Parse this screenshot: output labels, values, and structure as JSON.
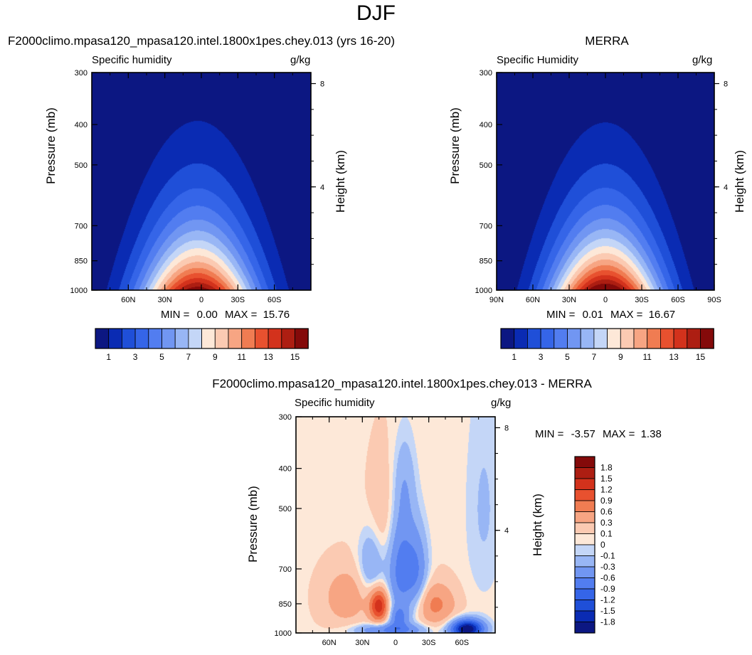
{
  "figure": {
    "title": "DJF"
  },
  "chart_data": [
    {
      "type": "heatmap",
      "id": "model",
      "title": "F2000climo.mpasa120_mpasa120.intel.1800x1pes.chey.013 (yrs 16-20)",
      "left_label": "Specific humidity",
      "right_label": "g/kg",
      "ylabel": "Pressure (mb)",
      "y2label": "Height (km)",
      "x_ticks": [
        "60N",
        "30N",
        "0",
        "30S",
        "60S"
      ],
      "x_tick_values": [
        60,
        30,
        0,
        -30,
        -60
      ],
      "y_ticks": [
        "300",
        "400",
        "500",
        "700",
        "850",
        "1000"
      ],
      "y_tick_values": [
        300,
        400,
        500,
        700,
        850,
        1000
      ],
      "y2_ticks": [
        "8",
        "4"
      ],
      "y2_tick_values": [
        8,
        4
      ],
      "xlim": [
        90,
        -90
      ],
      "ylim": [
        1000,
        300
      ],
      "y_scale": "log",
      "stats": {
        "min_label": "MIN =",
        "min": "0.00",
        "max_label": "MAX =",
        "max": "15.76"
      },
      "field": {
        "kind": "humidity",
        "peak": 15.76,
        "width": 32,
        "top_lat": 3,
        "scale_height": 0.34
      },
      "colorbar": {
        "orientation": "horizontal",
        "labels": [
          "1",
          "3",
          "5",
          "7",
          "9",
          "11",
          "13",
          "15"
        ],
        "levels": [
          1,
          2,
          3,
          4,
          5,
          6,
          7,
          8,
          9,
          10,
          11,
          12,
          13,
          14,
          15
        ],
        "colors": [
          "#0c1782",
          "#0a2bb3",
          "#1f4fd8",
          "#3565e8",
          "#527df0",
          "#7196f2",
          "#98b6f5",
          "#c4d6f7",
          "#fde8d8",
          "#fbcab2",
          "#f7a583",
          "#f07c52",
          "#e8512f",
          "#d3321c",
          "#ad1e12",
          "#840a0a"
        ]
      }
    },
    {
      "type": "heatmap",
      "id": "obs",
      "title": "MERRA",
      "left_label": "Specific Humidity",
      "right_label": "g/kg",
      "ylabel": "Pressure (mb)",
      "y2label": "Height (km)",
      "x_ticks": [
        "90N",
        "60N",
        "30N",
        "0",
        "30S",
        "60S",
        "90S"
      ],
      "x_tick_values": [
        90,
        60,
        30,
        0,
        -30,
        -60,
        -90
      ],
      "y_ticks": [
        "300",
        "400",
        "500",
        "700",
        "850",
        "1000"
      ],
      "y_tick_values": [
        300,
        400,
        500,
        700,
        850,
        1000
      ],
      "y2_ticks": [
        "8",
        "4"
      ],
      "y2_tick_values": [
        8,
        4
      ],
      "xlim": [
        90,
        -90
      ],
      "ylim": [
        1000,
        300
      ],
      "y_scale": "log",
      "stats": {
        "min_label": "MIN =",
        "min": "0.01",
        "max_label": "MAX =",
        "max": "16.67"
      },
      "field": {
        "kind": "humidity",
        "peak": 16.67,
        "width": 31,
        "top_lat": 0,
        "scale_height": 0.33
      },
      "colorbar": {
        "orientation": "horizontal",
        "labels": [
          "1",
          "3",
          "5",
          "7",
          "9",
          "11",
          "13",
          "15"
        ],
        "levels": [
          1,
          2,
          3,
          4,
          5,
          6,
          7,
          8,
          9,
          10,
          11,
          12,
          13,
          14,
          15
        ],
        "colors": [
          "#0c1782",
          "#0a2bb3",
          "#1f4fd8",
          "#3565e8",
          "#527df0",
          "#7196f2",
          "#98b6f5",
          "#c4d6f7",
          "#fde8d8",
          "#fbcab2",
          "#f7a583",
          "#f07c52",
          "#e8512f",
          "#d3321c",
          "#ad1e12",
          "#840a0a"
        ]
      }
    },
    {
      "type": "heatmap",
      "id": "diff",
      "title": "F2000climo.mpasa120_mpasa120.intel.1800x1pes.chey.013 - MERRA",
      "left_label": "Specific humidity",
      "right_label": "g/kg",
      "ylabel": "Pressure (mb)",
      "y2label": "Height (km)",
      "x_ticks": [
        "60N",
        "30N",
        "0",
        "30S",
        "60S"
      ],
      "x_tick_values": [
        60,
        30,
        0,
        -30,
        -60
      ],
      "y_ticks": [
        "300",
        "400",
        "500",
        "700",
        "850",
        "1000"
      ],
      "y_tick_values": [
        300,
        400,
        500,
        700,
        850,
        1000
      ],
      "y2_ticks": [
        "8",
        "4"
      ],
      "y2_tick_values": [
        8,
        4
      ],
      "xlim": [
        90,
        -90
      ],
      "ylim": [
        1000,
        300
      ],
      "y_scale": "log",
      "stats": {
        "min_label": "MIN =",
        "min": "-3.57",
        "max_label": "MAX =",
        "max": "1.38"
      },
      "field": {
        "kind": "difference"
      },
      "colorbar": {
        "orientation": "vertical",
        "labels": [
          "1.8",
          "1.5",
          "1.2",
          "0.9",
          "0.6",
          "0.3",
          "0.1",
          "0",
          "-0.1",
          "-0.3",
          "-0.6",
          "-0.9",
          "-1.2",
          "-1.5",
          "-1.8"
        ],
        "levels": [
          -1.8,
          -1.5,
          -1.2,
          -0.9,
          -0.6,
          -0.3,
          -0.1,
          0,
          0.1,
          0.3,
          0.6,
          0.9,
          1.2,
          1.5,
          1.8
        ],
        "colors": [
          "#0c1782",
          "#0a2bb3",
          "#1f4fd8",
          "#3565e8",
          "#527df0",
          "#7196f2",
          "#98b6f5",
          "#c4d6f7",
          "#fde8d8",
          "#fbcab2",
          "#f7a583",
          "#f07c52",
          "#e8512f",
          "#d3321c",
          "#ad1e12",
          "#840a0a"
        ]
      }
    }
  ]
}
